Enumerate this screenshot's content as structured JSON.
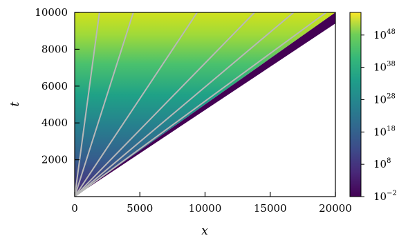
{
  "chart_data": {
    "type": "heatmap",
    "xlabel": "x",
    "ylabel": "t",
    "xlim": [
      0,
      20000
    ],
    "ylim": [
      0,
      10000
    ],
    "x_ticks": [
      0,
      5000,
      10000,
      15000,
      20000
    ],
    "y_ticks": [
      2000,
      4000,
      6000,
      8000,
      10000
    ],
    "x_tick_labels": [
      "0",
      "5000",
      "10000",
      "15000",
      "20000"
    ],
    "y_tick_labels": [
      "2000",
      "4000",
      "6000",
      "8000",
      "10000"
    ],
    "colorbar": {
      "scale": "log",
      "colormap": "viridis",
      "range_exponent": [
        -2,
        55
      ],
      "tick_exponents": [
        -2,
        8,
        18,
        28,
        38,
        48
      ],
      "tick_labels": [
        {
          "base": "10",
          "exp": "−2"
        },
        {
          "base": "10",
          "exp": "8"
        },
        {
          "base": "10",
          "exp": "18"
        },
        {
          "base": "10",
          "exp": "28"
        },
        {
          "base": "10",
          "exp": "38"
        },
        {
          "base": "10",
          "exp": "48"
        }
      ]
    },
    "edge_line": {
      "points": [
        [
          0,
          0
        ],
        [
          20000,
          10000
        ]
      ],
      "note_color": "#440154"
    },
    "lower_boundary": {
      "points": [
        [
          0,
          0
        ],
        [
          20000,
          9400
        ]
      ]
    },
    "rays": [
      {
        "x_end": 1900,
        "t_end": 10000
      },
      {
        "x_end": 4500,
        "t_end": 10000
      },
      {
        "x_end": 9400,
        "t_end": 10000
      },
      {
        "x_end": 13800,
        "t_end": 10000
      },
      {
        "x_end": 16800,
        "t_end": 10000
      },
      {
        "x_end": 19300,
        "t_end": 10000
      }
    ],
    "ray_color": "#b8b8b8"
  }
}
